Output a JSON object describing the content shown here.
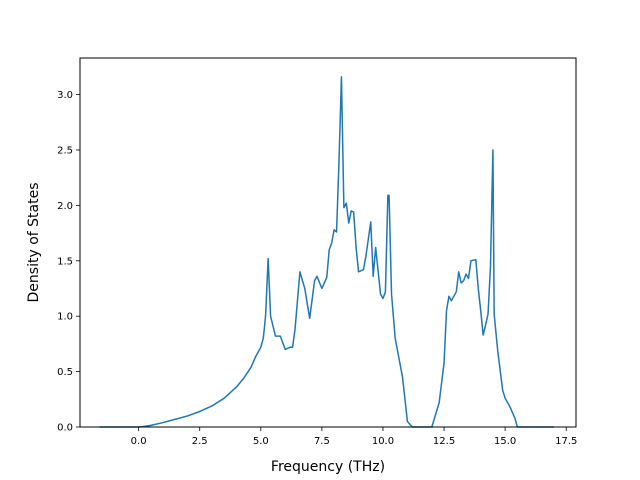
{
  "chart_data": {
    "type": "line",
    "title": "",
    "xlabel": "Frequency (THz)",
    "ylabel": "Density of States",
    "xlim": [
      -2.4,
      17.9
    ],
    "ylim": [
      0.0,
      3.33
    ],
    "xticks": [
      0.0,
      2.5,
      5.0,
      7.5,
      10.0,
      12.5,
      15.0,
      17.5
    ],
    "xtick_labels": [
      "0.0",
      "2.5",
      "5.0",
      "7.5",
      "10.0",
      "12.5",
      "15.0",
      "17.5"
    ],
    "yticks": [
      0.0,
      0.5,
      1.0,
      1.5,
      2.0,
      2.5,
      3.0
    ],
    "ytick_labels": [
      "0.0",
      "0.5",
      "1.0",
      "1.5",
      "2.0",
      "2.5",
      "3.0"
    ],
    "grid": false,
    "line_color": "#1f77b4",
    "series": [
      {
        "x": [
          -1.6,
          -1.0,
          0.0,
          0.2,
          0.5,
          1.0,
          1.5,
          2.0,
          2.5,
          3.0,
          3.5,
          4.0,
          4.3,
          4.6,
          4.8,
          5.0,
          5.1,
          5.15,
          5.2,
          5.3,
          5.4,
          5.6,
          5.8,
          6.0,
          6.2,
          6.3,
          6.4,
          6.6,
          6.8,
          7.0,
          7.2,
          7.3,
          7.5,
          7.7,
          7.8,
          7.9,
          8.0,
          8.1,
          8.2,
          8.3,
          8.4,
          8.5,
          8.6,
          8.7,
          8.8,
          8.9,
          9.0,
          9.2,
          9.3,
          9.5,
          9.6,
          9.7,
          9.9,
          10.0,
          10.1,
          10.2,
          10.25,
          10.35,
          10.5,
          10.8,
          11.0,
          11.2,
          12.0,
          12.3,
          12.5,
          12.6,
          12.7,
          12.8,
          13.0,
          13.1,
          13.2,
          13.3,
          13.4,
          13.5,
          13.6,
          13.8,
          13.9,
          14.0,
          14.1,
          14.2,
          14.3,
          14.4,
          14.5,
          14.55,
          14.7,
          14.9,
          15.0,
          15.2,
          15.4,
          15.5,
          16.0,
          17.0
        ],
        "y": [
          0.0,
          0.0,
          0.0,
          0.005,
          0.015,
          0.04,
          0.07,
          0.1,
          0.14,
          0.19,
          0.26,
          0.36,
          0.44,
          0.54,
          0.64,
          0.72,
          0.8,
          0.9,
          1.02,
          1.52,
          1.0,
          0.82,
          0.82,
          0.7,
          0.72,
          0.72,
          0.88,
          1.4,
          1.25,
          0.98,
          1.32,
          1.36,
          1.25,
          1.35,
          1.6,
          1.66,
          1.78,
          1.76,
          2.4,
          3.16,
          1.98,
          2.02,
          1.84,
          1.95,
          1.94,
          1.62,
          1.4,
          1.42,
          1.54,
          1.85,
          1.36,
          1.62,
          1.2,
          1.16,
          1.22,
          2.09,
          2.09,
          1.2,
          0.8,
          0.45,
          0.05,
          0.0,
          0.0,
          0.22,
          0.58,
          1.05,
          1.18,
          1.14,
          1.22,
          1.4,
          1.3,
          1.32,
          1.38,
          1.34,
          1.5,
          1.51,
          1.25,
          1.05,
          0.83,
          0.92,
          1.02,
          1.45,
          2.5,
          1.02,
          0.68,
          0.33,
          0.26,
          0.18,
          0.08,
          0.0,
          0.0,
          0.0
        ]
      }
    ]
  }
}
